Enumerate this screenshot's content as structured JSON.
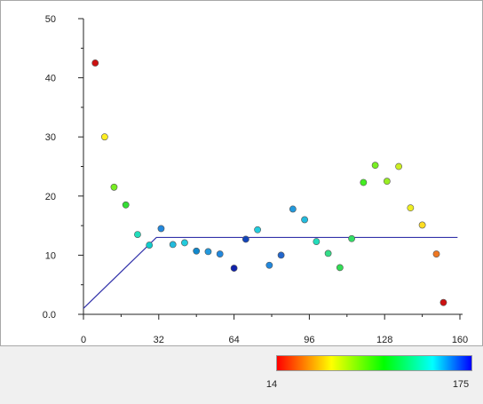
{
  "chart_data": {
    "type": "scatter",
    "title": "",
    "xlabel": "",
    "ylabel": "",
    "xlim": [
      0,
      160
    ],
    "ylim": [
      0,
      50
    ],
    "x_ticks": [
      {
        "value": 0,
        "label": "0"
      },
      {
        "value": 32,
        "label": "32"
      },
      {
        "value": 64,
        "label": "64"
      },
      {
        "value": 96,
        "label": "96"
      },
      {
        "value": 128,
        "label": "128"
      },
      {
        "value": 160,
        "label": "160"
      }
    ],
    "y_ticks": [
      {
        "value": 0,
        "label": "0.0"
      },
      {
        "value": 10,
        "label": "10"
      },
      {
        "value": 20,
        "label": "20"
      },
      {
        "value": 30,
        "label": "30"
      },
      {
        "value": 40,
        "label": "40"
      },
      {
        "value": 50,
        "label": "50"
      }
    ],
    "points": [
      {
        "x": 5,
        "y": 42.5,
        "color": "#cc1111"
      },
      {
        "x": 9,
        "y": 30.0,
        "color": "#ffee22"
      },
      {
        "x": 13,
        "y": 21.5,
        "color": "#77ee22"
      },
      {
        "x": 18,
        "y": 18.5,
        "color": "#33dd33"
      },
      {
        "x": 23,
        "y": 13.5,
        "color": "#22ddbb"
      },
      {
        "x": 28,
        "y": 11.7,
        "color": "#11cccc"
      },
      {
        "x": 33,
        "y": 14.5,
        "color": "#2288dd"
      },
      {
        "x": 38,
        "y": 11.8,
        "color": "#22bbdd"
      },
      {
        "x": 43,
        "y": 12.1,
        "color": "#22ccdd"
      },
      {
        "x": 48,
        "y": 10.7,
        "color": "#1188cc"
      },
      {
        "x": 53,
        "y": 10.6,
        "color": "#2299dd"
      },
      {
        "x": 58,
        "y": 10.2,
        "color": "#2288dd"
      },
      {
        "x": 64,
        "y": 7.8,
        "color": "#1122aa"
      },
      {
        "x": 69,
        "y": 12.7,
        "color": "#1144bb"
      },
      {
        "x": 74,
        "y": 14.3,
        "color": "#22ccdd"
      },
      {
        "x": 79,
        "y": 8.3,
        "color": "#2288dd"
      },
      {
        "x": 84,
        "y": 10.0,
        "color": "#2266cc"
      },
      {
        "x": 89,
        "y": 17.8,
        "color": "#2299dd"
      },
      {
        "x": 94,
        "y": 16.0,
        "color": "#22bbdd"
      },
      {
        "x": 99,
        "y": 12.3,
        "color": "#22ddbb"
      },
      {
        "x": 104,
        "y": 10.3,
        "color": "#33dd88"
      },
      {
        "x": 109,
        "y": 7.9,
        "color": "#33dd55"
      },
      {
        "x": 114,
        "y": 12.8,
        "color": "#33dd66"
      },
      {
        "x": 119,
        "y": 22.3,
        "color": "#44ee22"
      },
      {
        "x": 124,
        "y": 25.2,
        "color": "#77ee22"
      },
      {
        "x": 129,
        "y": 22.5,
        "color": "#99ee22"
      },
      {
        "x": 134,
        "y": 25.0,
        "color": "#ccee22"
      },
      {
        "x": 139,
        "y": 18.0,
        "color": "#eeee22"
      },
      {
        "x": 144,
        "y": 15.1,
        "color": "#ffdd22"
      },
      {
        "x": 150,
        "y": 10.2,
        "color": "#ee7722"
      },
      {
        "x": 153,
        "y": 2.0,
        "color": "#cc1111"
      }
    ],
    "fit_line": {
      "color": "#3333aa",
      "points": [
        [
          0,
          1.0
        ],
        [
          31,
          13.0
        ],
        [
          159,
          13.0
        ]
      ]
    },
    "colorbar": {
      "min_label": "14",
      "max_label": "175",
      "stops": [
        "#ff0000",
        "#ffff00",
        "#00ff00",
        "#00ffff",
        "#0000ff"
      ]
    }
  }
}
